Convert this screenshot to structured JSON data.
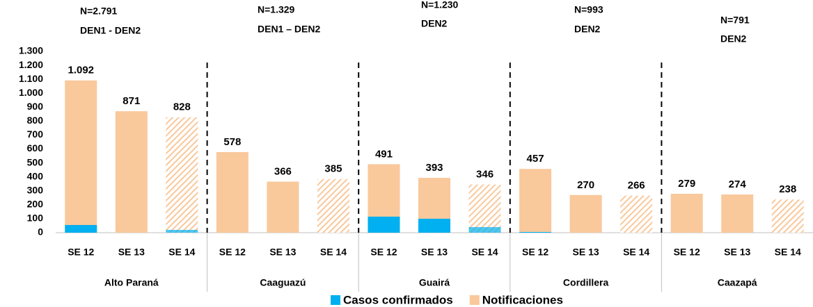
{
  "chart_data": {
    "type": "bar",
    "groups": [
      {
        "name": "Alto Paraná",
        "n": "N=2.791",
        "serotype": "DEN1 - DEN2",
        "categories": [
          "SE 12",
          "SE 13",
          "SE 14"
        ]
      },
      {
        "name": "Caaguazú",
        "n": "N=1.329",
        "serotype": "DEN1 – DEN2",
        "categories": [
          "SE 12",
          "SE 13",
          "SE 14"
        ]
      },
      {
        "name": "Guairá",
        "n": "N=1.230",
        "serotype": "DEN2",
        "categories": [
          "SE 12",
          "SE 13",
          "SE 14"
        ]
      },
      {
        "name": "Cordillera",
        "n": "N=993",
        "serotype": "DEN2",
        "categories": [
          "SE 12",
          "SE 13",
          "SE 14"
        ]
      },
      {
        "name": "Caazapá",
        "n": "N=791",
        "serotype": "DEN2",
        "categories": [
          "SE 12",
          "SE 13",
          "SE 14"
        ]
      }
    ],
    "hatched": [
      false,
      false,
      true
    ],
    "series": [
      {
        "name": "Notificaciones",
        "color": "#f9c89b",
        "values": [
          1092,
          871,
          828,
          578,
          366,
          385,
          491,
          393,
          346,
          457,
          270,
          266,
          279,
          274,
          238
        ],
        "value_labels": [
          "1.092",
          "871",
          "828",
          "578",
          "366",
          "385",
          "491",
          "393",
          "346",
          "457",
          "270",
          "266",
          "279",
          "274",
          "238"
        ]
      },
      {
        "name": "Casos confirmados",
        "color": "#00b0f0",
        "values": [
          55,
          0,
          20,
          0,
          0,
          0,
          115,
          100,
          40,
          5,
          0,
          0,
          0,
          0,
          0
        ]
      }
    ],
    "legend_order": [
      1,
      0
    ],
    "ylim": [
      0,
      1300
    ],
    "yticks": [
      0,
      100,
      200,
      300,
      400,
      500,
      600,
      700,
      800,
      900,
      {
        "value": 1000,
        "label": "1.000"
      },
      {
        "value": 1100,
        "label": "1.100"
      },
      {
        "value": 1200,
        "label": "1.200"
      },
      {
        "value": 1300,
        "label": "1.300"
      }
    ]
  }
}
